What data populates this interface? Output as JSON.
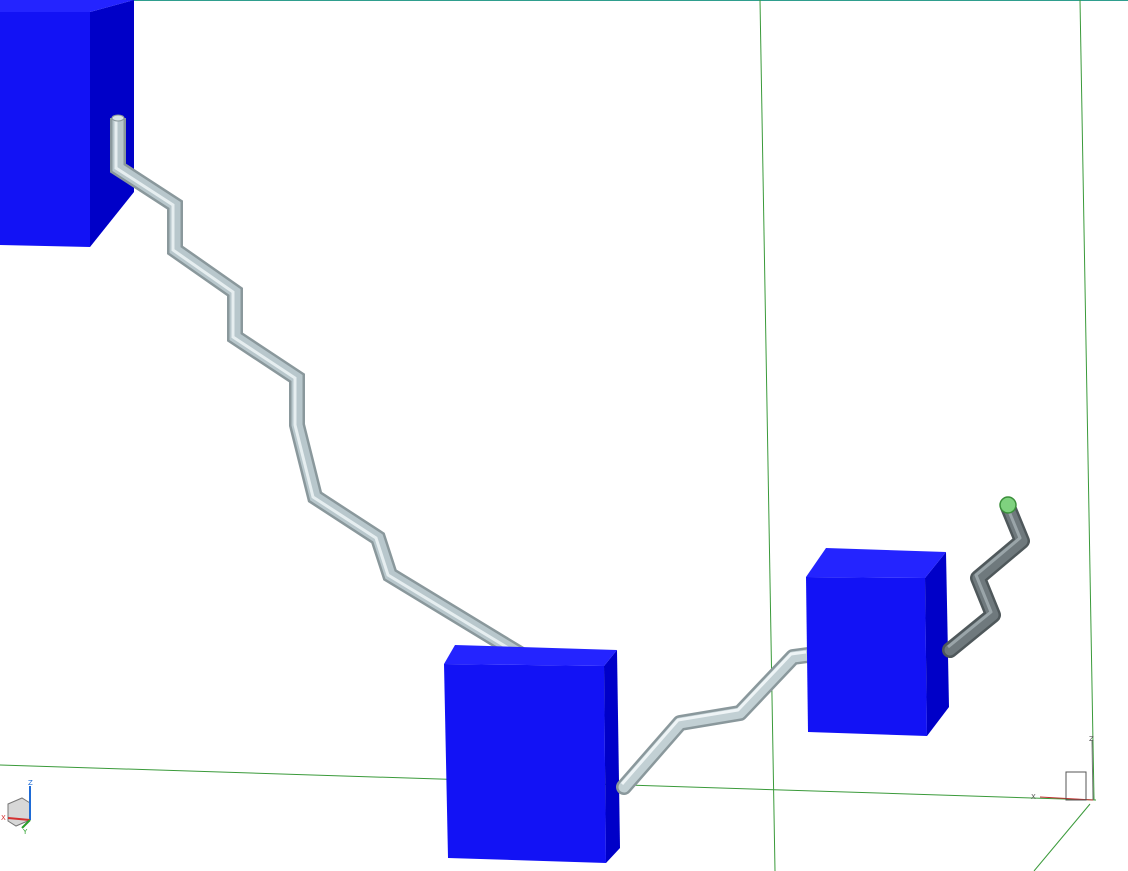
{
  "viewport": {
    "background": "#ffffff",
    "block_color": "#1212f5",
    "block_top_color": "#2424ff",
    "block_side_color": "#0000c8",
    "pipe_color": "#b3c2c7",
    "pipe_dark_color": "#6a7377",
    "grid_color": "#3a9a3a",
    "frame_color": "#2f9e8e",
    "selected_endpoint_color": "#7fd27f"
  },
  "triad_left": {
    "x_axis_label": "X",
    "y_axis_label": "Y",
    "z_axis_label": "Z"
  },
  "triad_right": {
    "x_axis_label": "X",
    "z_axis_label": "Z"
  }
}
